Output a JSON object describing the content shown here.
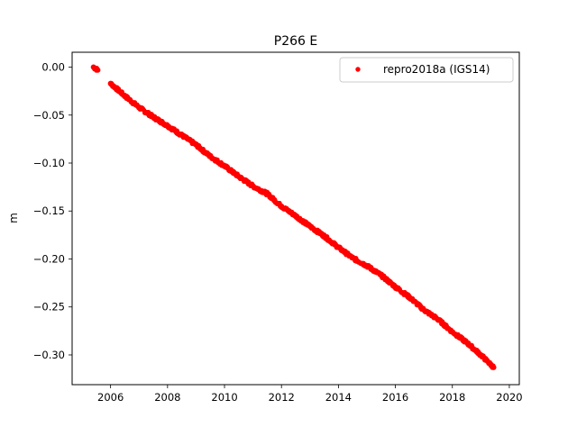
{
  "chart_data": {
    "type": "scatter",
    "title": "P266 E",
    "xlabel": "",
    "ylabel": "m",
    "xlim": [
      2004.65,
      2020.35
    ],
    "ylim": [
      -0.331,
      0.0155
    ],
    "x_ticks": [
      2006,
      2008,
      2010,
      2012,
      2014,
      2016,
      2018,
      2020
    ],
    "x_tick_labels": [
      "2006",
      "2008",
      "2010",
      "2012",
      "2014",
      "2016",
      "2018",
      "2020"
    ],
    "y_ticks": [
      0.0,
      -0.05,
      -0.1,
      -0.15,
      -0.2,
      -0.25,
      -0.3
    ],
    "y_tick_labels": [
      "0.00",
      "−0.05",
      "−0.10",
      "−0.15",
      "−0.20",
      "−0.25",
      "−0.30"
    ],
    "grid": false,
    "legend_position": "top-right",
    "series": [
      {
        "name": "repro2018a (IGS14)",
        "color": "#ff0000",
        "marker": "dot",
        "x": [
          2005.4,
          2005.45,
          2005.5,
          2005.55,
          2006.0,
          2006.5,
          2007.0,
          2007.5,
          2008.0,
          2008.5,
          2009.0,
          2009.5,
          2010.0,
          2010.5,
          2011.0,
          2011.5,
          2012.0,
          2012.5,
          2013.0,
          2013.5,
          2014.0,
          2014.5,
          2015.0,
          2015.5,
          2016.0,
          2016.5,
          2017.0,
          2017.5,
          2018.0,
          2018.5,
          2019.0,
          2019.45
        ],
        "y": [
          0.0,
          -0.001,
          -0.002,
          -0.003,
          -0.017,
          -0.03,
          -0.042,
          -0.052,
          -0.061,
          -0.071,
          -0.081,
          -0.093,
          -0.103,
          -0.114,
          -0.124,
          -0.132,
          -0.145,
          -0.155,
          -0.166,
          -0.176,
          -0.188,
          -0.199,
          -0.207,
          -0.217,
          -0.229,
          -0.24,
          -0.253,
          -0.263,
          -0.276,
          -0.287,
          -0.3,
          -0.313
        ]
      }
    ]
  }
}
